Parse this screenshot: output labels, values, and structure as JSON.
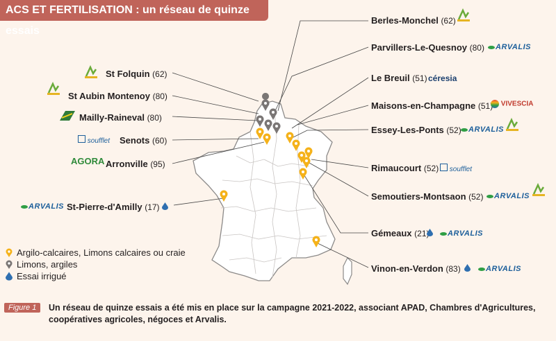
{
  "title": "ACS ET FERTILISATION : un réseau de quinze essais",
  "sites_left": [
    {
      "name": "St Folquin",
      "value": "(62)",
      "logo": "chambres-agriculture-logo"
    },
    {
      "name": "St Aubin Montenoy",
      "value": "(80)",
      "logo": "chambres-agriculture-logo"
    },
    {
      "name": "Mailly-Raineval",
      "value": "(80)",
      "logo": "mailly-logo"
    },
    {
      "name": "Senots",
      "value": "(60)",
      "logo": "soufflet-logo"
    },
    {
      "name": "Arronville",
      "value": "(95)",
      "logo": "agora-logo"
    },
    {
      "name": "St-Pierre-d'Amilly",
      "value": "(17)",
      "logo": "arvalis-logo"
    }
  ],
  "sites_right": [
    {
      "name": "Berles-Monchel",
      "value": "(62)",
      "logo": "chambres-agriculture-logo"
    },
    {
      "name": "Parvillers-Le-Quesnoy",
      "value": "(80)",
      "logo": "arvalis-logo"
    },
    {
      "name": "Le Breuil",
      "value": "(51)",
      "logo": "ceresia-logo"
    },
    {
      "name": "Maisons-en-Champagne",
      "value": "(51)",
      "logo": "vivescia-logo"
    },
    {
      "name": "Essey-Les-Ponts",
      "value": "(52)",
      "logo": "arvalis-logo"
    },
    {
      "name": "Rimaucourt",
      "value": "(52)",
      "logo": "soufflet-logo"
    },
    {
      "name": "Semoutiers-Montsaon",
      "value": "(52)",
      "logo": "arvalis-logo"
    },
    {
      "name": "Gémeaux",
      "value": "(21)",
      "logo": "arvalis-logo"
    },
    {
      "name": "Vinon-en-Verdon",
      "value": "(83)",
      "logo": "arvalis-logo"
    }
  ],
  "logos": {
    "arvalis": "ARVALIS",
    "soufflet": "soufflet",
    "agora": "AGORA",
    "ceresia": "céresia",
    "vivescia": "VIVESCIA"
  },
  "legend": [
    {
      "label": "Argilo-calcaires, Limons calcaires ou craie",
      "color": "#f5b21a",
      "icon": "yellow-pin-icon"
    },
    {
      "label": "Limons, argiles",
      "color": "#7a7675",
      "icon": "gray-pin-icon"
    },
    {
      "label": "Essai irrigué",
      "color": "#2f6fb0",
      "icon": "water-drop-icon"
    }
  ],
  "figure_tag": "Figure 1",
  "caption": "Un réseau de quinze essais a été mis en place sur la campagne 2021-2022, associant APAD, Chambres d'Agricultures, coopératives agricoles, négoces et Arvalis.",
  "colors": {
    "accent": "#c0645a",
    "pin_yellow": "#f5b21a",
    "pin_gray": "#7a7675",
    "drop": "#2f6fb0"
  }
}
